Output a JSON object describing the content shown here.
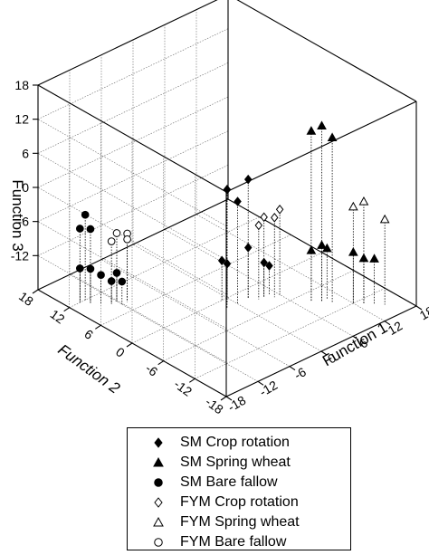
{
  "chart_data": {
    "type": "scatter",
    "title": "",
    "axes": {
      "x": {
        "label": "Function 1",
        "range": [
          -18,
          18
        ],
        "ticks": [
          "-18",
          "-12",
          "-6",
          "0",
          "6",
          "12",
          "18"
        ]
      },
      "y": {
        "label": "Function 2",
        "range": [
          -18,
          18
        ],
        "ticks": [
          "18",
          "12",
          "6",
          "0",
          "-6",
          "-12",
          "-18"
        ]
      },
      "z": {
        "label": "Function 3",
        "range": [
          -18,
          18
        ],
        "ticks": [
          "18",
          "12",
          "6",
          "0",
          "-6",
          "-12"
        ]
      }
    },
    "grid": true,
    "drop_lines": true,
    "legend_placement": "bottom",
    "series": [
      {
        "name": "SM Crop rotation",
        "marker": "diamond-filled",
        "points": [
          [
            -2,
            -2,
            3
          ],
          [
            -1,
            -1,
            2
          ],
          [
            0,
            -2,
            0
          ],
          [
            2,
            -2,
            3
          ],
          [
            -1,
            0,
            -11
          ],
          [
            0,
            0,
            -12
          ],
          [
            2,
            -2,
            -9
          ],
          [
            4,
            -3,
            -12
          ],
          [
            5,
            -3,
            -13
          ]
        ]
      },
      {
        "name": "SM Spring wheat",
        "marker": "triangle-filled",
        "points": [
          [
            8,
            -8,
            12
          ],
          [
            9,
            -9,
            13
          ],
          [
            10,
            -10,
            11
          ],
          [
            8,
            -8,
            -9
          ],
          [
            9,
            -9,
            -8
          ],
          [
            10,
            -9,
            -9
          ],
          [
            12,
            -12,
            -9
          ],
          [
            13,
            -13,
            -10
          ],
          [
            14,
            -14,
            -10
          ]
        ]
      },
      {
        "name": "SM Bare fallow",
        "marker": "circle-filled",
        "points": [
          [
            -16,
            12,
            -5
          ],
          [
            -15,
            11,
            -5
          ],
          [
            -15,
            12,
            -3
          ],
          [
            -16,
            12,
            -12
          ],
          [
            -15,
            11,
            -12
          ],
          [
            -14,
            10,
            -13
          ],
          [
            -13,
            9,
            -14
          ],
          [
            -12,
            8,
            -14
          ],
          [
            -12,
            9,
            -13
          ]
        ]
      },
      {
        "name": "FYM Crop rotation",
        "marker": "diamond-open",
        "points": [
          [
            3,
            -3,
            -5
          ],
          [
            4,
            -3,
            -4
          ],
          [
            5,
            -4,
            -4
          ],
          [
            6,
            -4,
            -3
          ]
        ]
      },
      {
        "name": "FYM Spring wheat",
        "marker": "triangle-open",
        "points": [
          [
            12,
            -12,
            -1
          ],
          [
            13,
            -13,
            0
          ],
          [
            15,
            -15,
            -3
          ]
        ]
      },
      {
        "name": "FYM Bare fallow",
        "marker": "circle-open",
        "points": [
          [
            -13,
            9,
            -7
          ],
          [
            -12,
            9,
            -6
          ],
          [
            -11,
            8,
            -6
          ],
          [
            -11,
            8,
            -7
          ]
        ]
      }
    ]
  },
  "legend": {
    "items": [
      {
        "label": "SM Crop rotation",
        "marker": "diamond-filled"
      },
      {
        "label": "SM Spring wheat",
        "marker": "triangle-filled"
      },
      {
        "label": "SM Bare fallow",
        "marker": "circle-filled"
      },
      {
        "label": "FYM Crop rotation",
        "marker": "diamond-open"
      },
      {
        "label": "FYM Spring wheat",
        "marker": "triangle-open"
      },
      {
        "label": "FYM Bare fallow",
        "marker": "circle-open"
      }
    ]
  },
  "colors": {
    "ink": "#000000",
    "grid": "#666666",
    "background": "#ffffff"
  }
}
